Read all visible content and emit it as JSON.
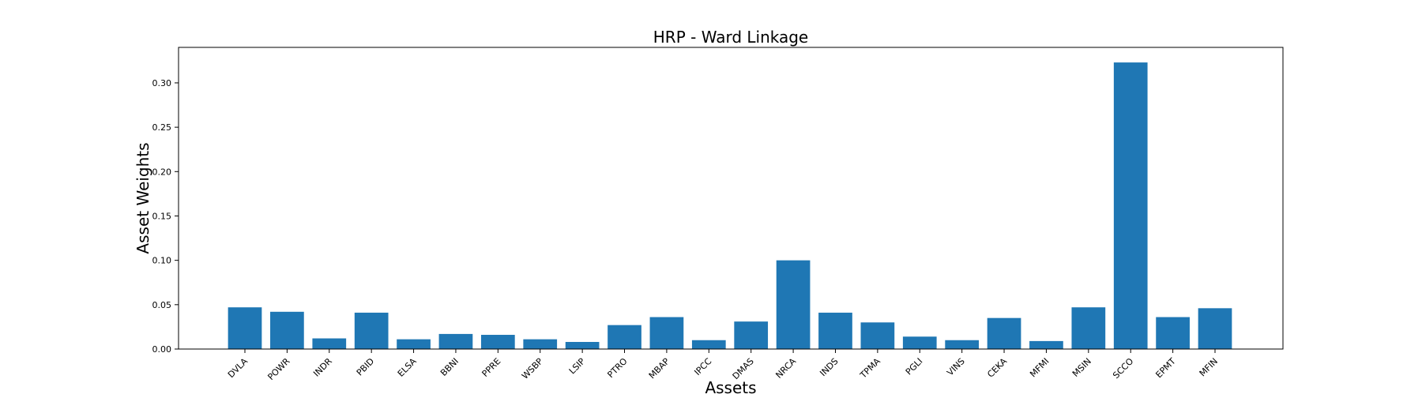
{
  "chart_data": {
    "type": "bar",
    "title": "HRP - Ward Linkage",
    "xlabel": "Assets",
    "ylabel": "Asset Weights",
    "categories": [
      "DVLA",
      "POWR",
      "INDR",
      "PBID",
      "ELSA",
      "BBNI",
      "PPRE",
      "WSBP",
      "LSIP",
      "PTRO",
      "MBAP",
      "IPCC",
      "DMAS",
      "NRCA",
      "INDS",
      "TPMA",
      "PGLI",
      "VINS",
      "CEKA",
      "MFMI",
      "MSIN",
      "SCCO",
      "EPMT",
      "MFIN"
    ],
    "values": [
      0.047,
      0.042,
      0.012,
      0.041,
      0.011,
      0.017,
      0.016,
      0.011,
      0.008,
      0.027,
      0.036,
      0.01,
      0.031,
      0.1,
      0.041,
      0.03,
      0.014,
      0.01,
      0.035,
      0.009,
      0.047,
      0.323,
      0.036,
      0.046
    ],
    "ylim": [
      0,
      0.34
    ],
    "yticks": [
      "0.00",
      "0.05",
      "0.10",
      "0.15",
      "0.20",
      "0.25",
      "0.30"
    ],
    "grid": false,
    "bar_color": "#1f77b4"
  }
}
